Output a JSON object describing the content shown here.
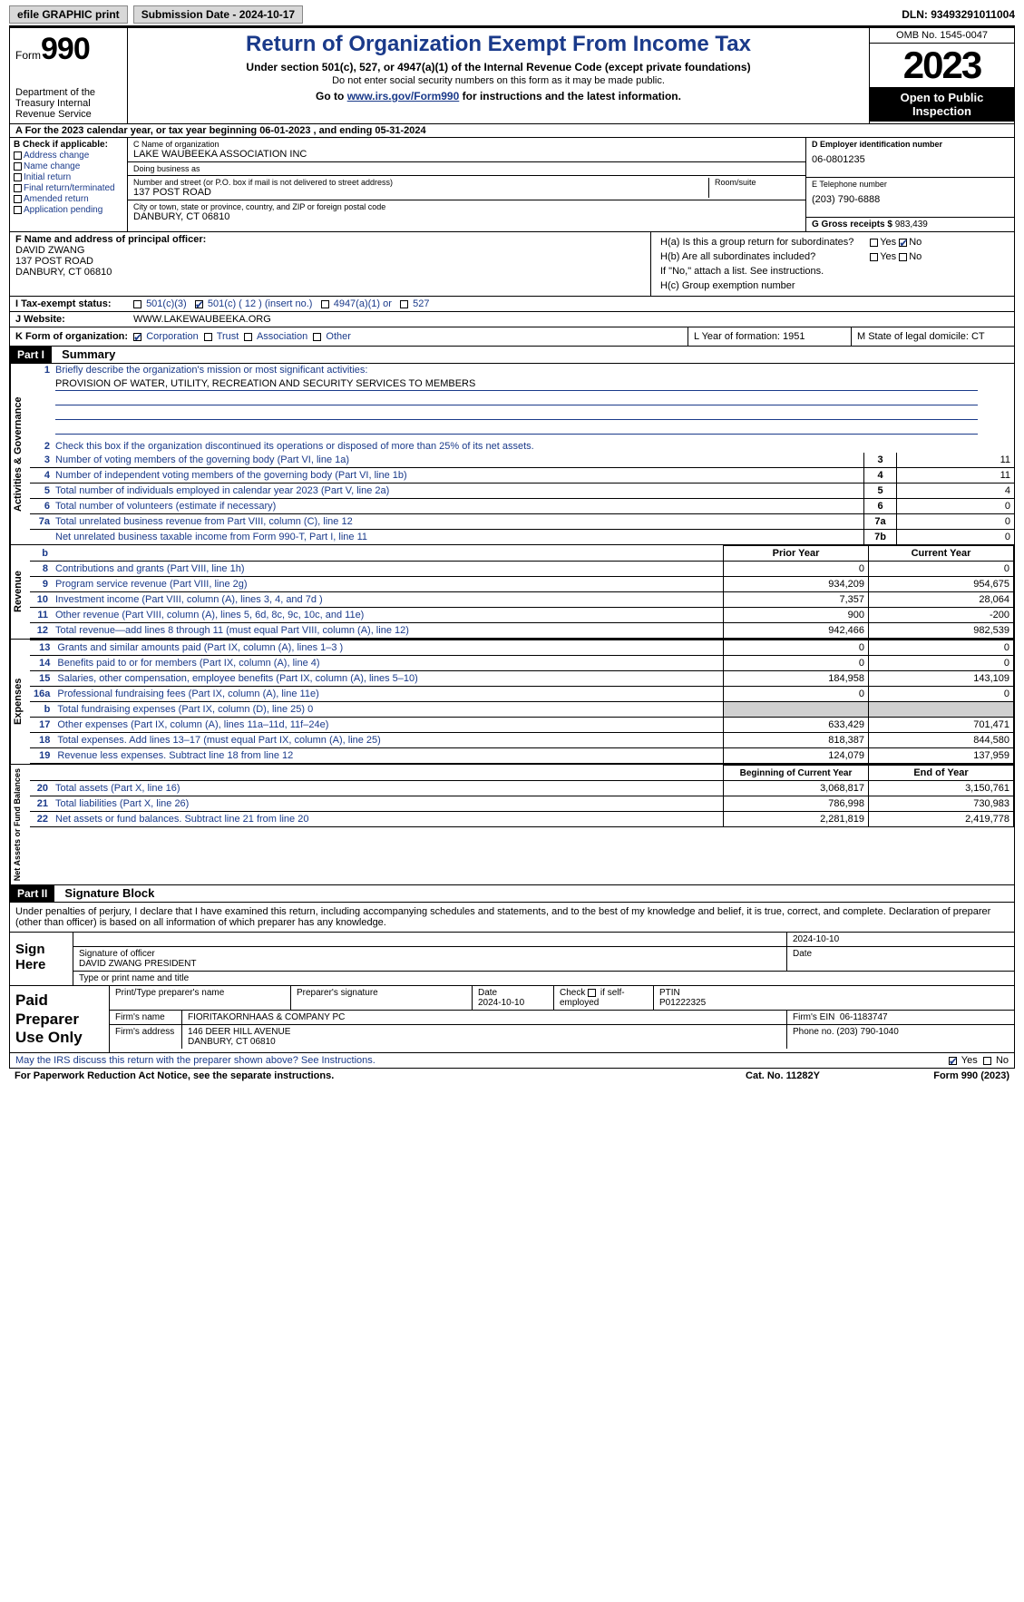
{
  "topbar": {
    "efile": "efile GRAPHIC print",
    "submission": "Submission Date - 2024-10-17",
    "dln": "DLN: 93493291011004"
  },
  "header": {
    "form_label": "Form",
    "form_num": "990",
    "dept": "Department of the Treasury Internal Revenue Service",
    "title": "Return of Organization Exempt From Income Tax",
    "sub1": "Under section 501(c), 527, or 4947(a)(1) of the Internal Revenue Code (except private foundations)",
    "sub2": "Do not enter social security numbers on this form as it may be made public.",
    "sub3_pre": "Go to ",
    "sub3_link": "www.irs.gov/Form990",
    "sub3_post": " for instructions and the latest information.",
    "omb": "OMB No. 1545-0047",
    "year": "2023",
    "open": "Open to Public Inspection"
  },
  "row_a": "A  For the 2023 calendar year, or tax year beginning 06-01-2023    , and ending 05-31-2024",
  "col_b": {
    "hdr": "B Check if applicable:",
    "items": [
      "Address change",
      "Name change",
      "Initial return",
      "Final return/terminated",
      "Amended return",
      "Application pending"
    ]
  },
  "col_c": {
    "name_lbl": "C Name of organization",
    "name": "LAKE WAUBEEKA ASSOCIATION INC",
    "dba_lbl": "Doing business as",
    "dba": "",
    "street_lbl": "Number and street (or P.O. box if mail is not delivered to street address)",
    "street": "137 POST ROAD",
    "room_lbl": "Room/suite",
    "city_lbl": "City or town, state or province, country, and ZIP or foreign postal code",
    "city": "DANBURY, CT   06810"
  },
  "col_d": {
    "ein_lbl": "D Employer identification number",
    "ein": "06-0801235",
    "phone_lbl": "E Telephone number",
    "phone": "(203) 790-6888",
    "gross_lbl": "G Gross receipts $",
    "gross": "983,439"
  },
  "col_f": {
    "lbl": "F  Name and address of principal officer:",
    "name": "DAVID ZWANG",
    "street": "137 POST ROAD",
    "city": "DANBURY, CT   06810"
  },
  "col_h": {
    "ha_lbl": "H(a)  Is this a group return for subordinates?",
    "hb_lbl": "H(b)  Are all subordinates included?",
    "hb_note": "If \"No,\" attach a list. See instructions.",
    "hc_lbl": "H(c)  Group exemption number"
  },
  "row_i": {
    "lbl": "I    Tax-exempt status:",
    "opts": [
      "501(c)(3)",
      "501(c) ( 12 ) (insert no.)",
      "4947(a)(1) or",
      "527"
    ]
  },
  "row_j": {
    "lbl": "J    Website:",
    "val": "WWW.LAKEWAUBEEKA.ORG"
  },
  "row_k": {
    "lbl": "K Form of organization:",
    "opts": [
      "Corporation",
      "Trust",
      "Association",
      "Other"
    ],
    "l_lbl": "L Year of formation: 1951",
    "m_lbl": "M State of legal domicile: CT"
  },
  "part1": {
    "hdr": "Part I",
    "title": "Summary"
  },
  "governance": {
    "vtab": "Activities & Governance",
    "line1": "Briefly describe the organization's mission or most significant activities:",
    "mission": "PROVISION OF WATER, UTILITY, RECREATION AND SECURITY SERVICES TO MEMBERS",
    "line2": "Check this box      if the organization discontinued its operations or disposed of more than 25% of its net assets.",
    "rows": [
      {
        "n": "3",
        "t": "Number of voting members of the governing body (Part VI, line 1a)",
        "c": "3",
        "v": "11"
      },
      {
        "n": "4",
        "t": "Number of independent voting members of the governing body (Part VI, line 1b)",
        "c": "4",
        "v": "11"
      },
      {
        "n": "5",
        "t": "Total number of individuals employed in calendar year 2023 (Part V, line 2a)",
        "c": "5",
        "v": "4"
      },
      {
        "n": "6",
        "t": "Total number of volunteers (estimate if necessary)",
        "c": "6",
        "v": "0"
      },
      {
        "n": "7a",
        "t": "Total unrelated business revenue from Part VIII, column (C), line 12",
        "c": "7a",
        "v": "0"
      },
      {
        "n": "",
        "t": "Net unrelated business taxable income from Form 990-T, Part I, line 11",
        "c": "7b",
        "v": "0"
      }
    ]
  },
  "revenue": {
    "vtab": "Revenue",
    "hdr_b": "b",
    "col_prior": "Prior Year",
    "col_current": "Current Year",
    "rows": [
      {
        "n": "8",
        "t": "Contributions and grants (Part VIII, line 1h)",
        "p": "0",
        "c": "0"
      },
      {
        "n": "9",
        "t": "Program service revenue (Part VIII, line 2g)",
        "p": "934,209",
        "c": "954,675"
      },
      {
        "n": "10",
        "t": "Investment income (Part VIII, column (A), lines 3, 4, and 7d )",
        "p": "7,357",
        "c": "28,064"
      },
      {
        "n": "11",
        "t": "Other revenue (Part VIII, column (A), lines 5, 6d, 8c, 9c, 10c, and 11e)",
        "p": "900",
        "c": "-200"
      },
      {
        "n": "12",
        "t": "Total revenue—add lines 8 through 11 (must equal Part VIII, column (A), line 12)",
        "p": "942,466",
        "c": "982,539"
      }
    ]
  },
  "expenses": {
    "vtab": "Expenses",
    "rows": [
      {
        "n": "13",
        "t": "Grants and similar amounts paid (Part IX, column (A), lines 1–3 )",
        "p": "0",
        "c": "0"
      },
      {
        "n": "14",
        "t": "Benefits paid to or for members (Part IX, column (A), line 4)",
        "p": "0",
        "c": "0"
      },
      {
        "n": "15",
        "t": "Salaries, other compensation, employee benefits (Part IX, column (A), lines 5–10)",
        "p": "184,958",
        "c": "143,109"
      },
      {
        "n": "16a",
        "t": "Professional fundraising fees (Part IX, column (A), line 11e)",
        "p": "0",
        "c": "0"
      },
      {
        "n": "b",
        "t": "Total fundraising expenses (Part IX, column (D), line 25) 0",
        "p": "",
        "c": "",
        "gray": true
      },
      {
        "n": "17",
        "t": "Other expenses (Part IX, column (A), lines 11a–11d, 11f–24e)",
        "p": "633,429",
        "c": "701,471"
      },
      {
        "n": "18",
        "t": "Total expenses. Add lines 13–17 (must equal Part IX, column (A), line 25)",
        "p": "818,387",
        "c": "844,580"
      },
      {
        "n": "19",
        "t": "Revenue less expenses. Subtract line 18 from line 12",
        "p": "124,079",
        "c": "137,959"
      }
    ]
  },
  "netassets": {
    "vtab": "Net Assets or Fund Balances",
    "col_begin": "Beginning of Current Year",
    "col_end": "End of Year",
    "rows": [
      {
        "n": "20",
        "t": "Total assets (Part X, line 16)",
        "p": "3,068,817",
        "c": "3,150,761"
      },
      {
        "n": "21",
        "t": "Total liabilities (Part X, line 26)",
        "p": "786,998",
        "c": "730,983"
      },
      {
        "n": "22",
        "t": "Net assets or fund balances. Subtract line 21 from line 20",
        "p": "2,281,819",
        "c": "2,419,778"
      }
    ]
  },
  "part2": {
    "hdr": "Part II",
    "title": "Signature Block"
  },
  "sig_intro": "Under penalties of perjury, I declare that I have examined this return, including accompanying schedules and statements, and to the best of my knowledge and belief, it is true, correct, and complete. Declaration of preparer (other than officer) is based on all information of which preparer has any knowledge.",
  "sign": {
    "label": "Sign Here",
    "date": "2024-10-10",
    "sig_lbl": "Signature of officer",
    "name": "DAVID ZWANG  PRESIDENT",
    "type_lbl": "Type or print name and title",
    "date_lbl": "Date"
  },
  "prep": {
    "label": "Paid Preparer Use Only",
    "h1": "Print/Type preparer's name",
    "h2": "Preparer's signature",
    "h3": "Date",
    "date": "2024-10-10",
    "h4_pre": "Check",
    "h4_post": "if self-employed",
    "h5": "PTIN",
    "ptin": "P01222325",
    "firm_lbl": "Firm's name",
    "firm": "FIORITAKORNHAAS & COMPANY PC",
    "ein_lbl": "Firm's EIN",
    "ein": "06-1183747",
    "addr_lbl": "Firm's address",
    "addr1": "146 DEER HILL AVENUE",
    "addr2": "DANBURY, CT   06810",
    "phone_lbl": "Phone no.",
    "phone": "(203) 790-1040"
  },
  "discuss": "May the IRS discuss this return with the preparer shown above? See Instructions.",
  "footer": {
    "pra": "For Paperwork Reduction Act Notice, see the separate instructions.",
    "cat": "Cat. No. 11282Y",
    "form": "Form 990 (2023)"
  },
  "yn": {
    "yes": "Yes",
    "no": "No"
  }
}
